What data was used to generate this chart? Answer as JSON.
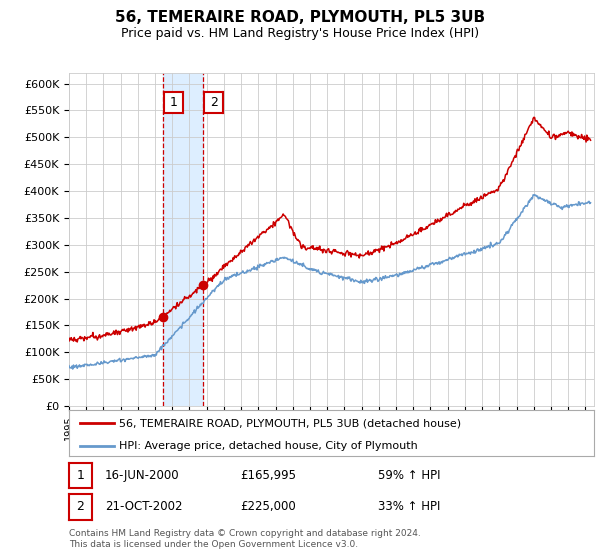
{
  "title": "56, TEMERAIRE ROAD, PLYMOUTH, PL5 3UB",
  "subtitle": "Price paid vs. HM Land Registry's House Price Index (HPI)",
  "yticks": [
    0,
    50000,
    100000,
    150000,
    200000,
    250000,
    300000,
    350000,
    400000,
    450000,
    500000,
    550000,
    600000
  ],
  "ytick_labels": [
    "£0",
    "£50K",
    "£100K",
    "£150K",
    "£200K",
    "£250K",
    "£300K",
    "£350K",
    "£400K",
    "£450K",
    "£500K",
    "£550K",
    "£600K"
  ],
  "xmin": 1995.0,
  "xmax": 2025.5,
  "ymin": 0,
  "ymax": 620000,
  "red_line_color": "#cc0000",
  "blue_line_color": "#6699cc",
  "shading_color": "#ddeeff",
  "dashed_line_color": "#cc0000",
  "transaction1_x": 2000.46,
  "transaction1_y": 165995,
  "transaction2_x": 2002.8,
  "transaction2_y": 225000,
  "legend_red_label": "56, TEMERAIRE ROAD, PLYMOUTH, PL5 3UB (detached house)",
  "legend_blue_label": "HPI: Average price, detached house, City of Plymouth",
  "table_row1": [
    "1",
    "16-JUN-2000",
    "£165,995",
    "59% ↑ HPI"
  ],
  "table_row2": [
    "2",
    "21-OCT-2002",
    "£225,000",
    "33% ↑ HPI"
  ],
  "footnote": "Contains HM Land Registry data © Crown copyright and database right 2024.\nThis data is licensed under the Open Government Licence v3.0.",
  "background_color": "#ffffff",
  "grid_color": "#cccccc",
  "box_border_color": "#cc0000",
  "title_fontsize": 11,
  "subtitle_fontsize": 9
}
